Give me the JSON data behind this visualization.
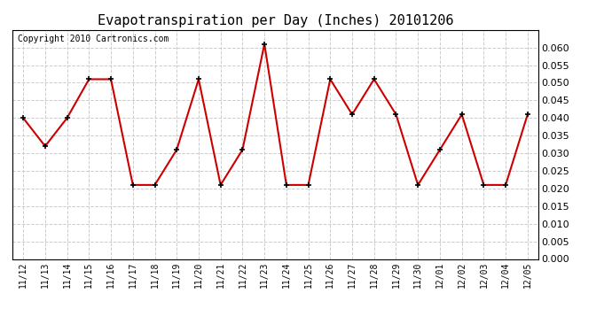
{
  "title": "Evapotranspiration per Day (Inches) 20101206",
  "copyright_text": "Copyright 2010 Cartronics.com",
  "labels": [
    "11/12",
    "11/13",
    "11/14",
    "11/15",
    "11/16",
    "11/17",
    "11/18",
    "11/19",
    "11/20",
    "11/21",
    "11/22",
    "11/23",
    "11/24",
    "11/25",
    "11/26",
    "11/27",
    "11/28",
    "11/29",
    "11/30",
    "12/01",
    "12/02",
    "12/03",
    "12/04",
    "12/05"
  ],
  "values": [
    0.04,
    0.032,
    0.04,
    0.051,
    0.051,
    0.021,
    0.021,
    0.031,
    0.051,
    0.021,
    0.031,
    0.061,
    0.021,
    0.021,
    0.051,
    0.041,
    0.051,
    0.041,
    0.021,
    0.031,
    0.041,
    0.021,
    0.021,
    0.041
  ],
  "line_color": "#cc0000",
  "marker": "+",
  "marker_color": "#000000",
  "background_color": "#ffffff",
  "plot_bg_color": "#ffffff",
  "grid_color": "#cccccc",
  "ylim": [
    0.0,
    0.065
  ],
  "yticks": [
    0.0,
    0.005,
    0.01,
    0.015,
    0.02,
    0.025,
    0.03,
    0.035,
    0.04,
    0.045,
    0.05,
    0.055,
    0.06
  ],
  "title_fontsize": 11,
  "copyright_fontsize": 7,
  "tick_fontsize": 7,
  "ytick_fontsize": 8,
  "line_width": 1.5,
  "marker_size": 5
}
